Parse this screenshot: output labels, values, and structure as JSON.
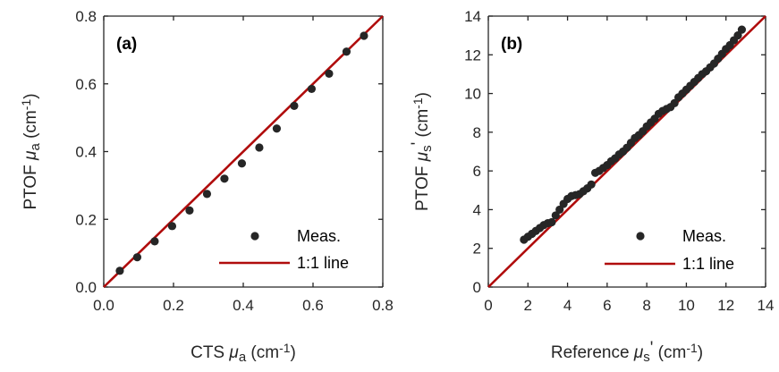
{
  "colors": {
    "marker": "#262626",
    "identity_line": "#b00c0c",
    "axis": "#262626"
  },
  "legend": {
    "measured": "Meas.",
    "identity": "1:1 line"
  },
  "chart_data": [
    {
      "type": "scatter",
      "panel_label": "(a)",
      "xlabel": {
        "prefix": "CTS ",
        "mu": "μ",
        "sub": "a",
        "mid": "",
        "unit_open": " (cm",
        "sup": "-1",
        "unit_close": ")"
      },
      "ylabel": {
        "prefix": "PTOF ",
        "mu": "μ",
        "sub": "a",
        "mid": "",
        "unit_open": " (cm",
        "sup": "-1",
        "unit_close": ")"
      },
      "xlim": [
        0,
        0.8
      ],
      "ylim": [
        0,
        0.8
      ],
      "xticks": [
        "0.0",
        "0.2",
        "0.4",
        "0.6",
        "0.8"
      ],
      "yticks": [
        "0.0",
        "0.2",
        "0.4",
        "0.6",
        "0.8"
      ],
      "xtick_values": [
        0,
        0.2,
        0.4,
        0.6,
        0.8
      ],
      "ytick_values": [
        0,
        0.2,
        0.4,
        0.6,
        0.8
      ],
      "series": [
        {
          "name": "Meas.",
          "x": [
            0.046,
            0.096,
            0.146,
            0.196,
            0.246,
            0.296,
            0.346,
            0.396,
            0.446,
            0.496,
            0.546,
            0.596,
            0.646,
            0.696,
            0.746
          ],
          "y": [
            0.048,
            0.088,
            0.135,
            0.18,
            0.226,
            0.275,
            0.32,
            0.365,
            0.412,
            0.468,
            0.535,
            0.585,
            0.63,
            0.695,
            0.742
          ]
        },
        {
          "name": "1:1 line",
          "x": [
            0,
            0.8
          ],
          "y": [
            0,
            0.8
          ]
        }
      ]
    },
    {
      "type": "scatter",
      "panel_label": "(b)",
      "xlabel": {
        "prefix": "Reference ",
        "mu": "μ",
        "sub": "s",
        "mid": "'",
        "unit_open": " (cm",
        "sup": "-1",
        "unit_close": ")"
      },
      "ylabel": {
        "prefix": "PTOF ",
        "mu": "μ",
        "sub": "s",
        "mid": "'",
        "unit_open": " (cm",
        "sup": "-1",
        "unit_close": ")"
      },
      "xlim": [
        0,
        14
      ],
      "ylim": [
        0,
        14
      ],
      "xticks": [
        "0",
        "2",
        "4",
        "6",
        "8",
        "10",
        "12",
        "14"
      ],
      "yticks": [
        "0",
        "2",
        "4",
        "6",
        "8",
        "10",
        "12",
        "14"
      ],
      "xtick_values": [
        0,
        2,
        4,
        6,
        8,
        10,
        12,
        14
      ],
      "ytick_values": [
        0,
        2,
        4,
        6,
        8,
        10,
        12,
        14
      ],
      "series": [
        {
          "name": "Meas.",
          "x": [
            1.8,
            2.0,
            2.2,
            2.4,
            2.6,
            2.8,
            3.0,
            3.2,
            3.4,
            3.6,
            3.8,
            4.0,
            4.2,
            4.4,
            4.6,
            4.8,
            5.0,
            5.2,
            5.4,
            5.6,
            5.8,
            6.0,
            6.2,
            6.4,
            6.6,
            6.8,
            7.0,
            7.2,
            7.4,
            7.6,
            7.8,
            8.0,
            8.2,
            8.4,
            8.6,
            8.8,
            9.0,
            9.2,
            9.4,
            9.6,
            9.8,
            10.0,
            10.2,
            10.4,
            10.6,
            10.8,
            11.0,
            11.2,
            11.4,
            11.6,
            11.8,
            12.0,
            12.2,
            12.4,
            12.6,
            12.8
          ],
          "y": [
            2.45,
            2.6,
            2.75,
            2.9,
            3.05,
            3.2,
            3.3,
            3.35,
            3.7,
            4.0,
            4.3,
            4.55,
            4.7,
            4.75,
            4.8,
            4.95,
            5.1,
            5.3,
            5.9,
            6.0,
            6.15,
            6.3,
            6.5,
            6.65,
            6.85,
            7.0,
            7.2,
            7.45,
            7.7,
            7.85,
            8.05,
            8.3,
            8.5,
            8.7,
            8.95,
            9.1,
            9.2,
            9.3,
            9.5,
            9.8,
            10.0,
            10.2,
            10.4,
            10.6,
            10.8,
            11.0,
            11.15,
            11.35,
            11.55,
            11.8,
            12.05,
            12.3,
            12.5,
            12.75,
            13.0,
            13.3
          ]
        },
        {
          "name": "1:1 line",
          "x": [
            0,
            14
          ],
          "y": [
            0,
            14
          ]
        }
      ]
    }
  ]
}
